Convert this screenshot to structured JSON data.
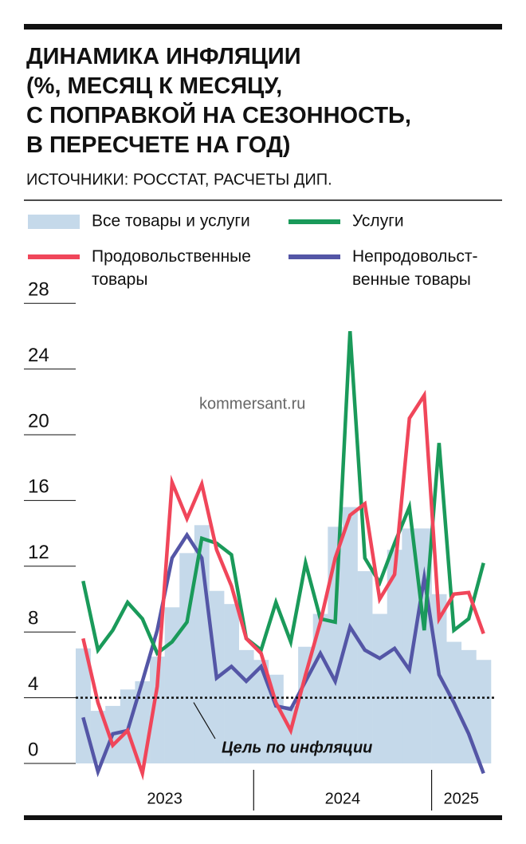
{
  "chart_data": {
    "type": "combo",
    "title": "ДИНАМИКА ИНФЛЯЦИИ\n(%, МЕСЯЦ К МЕСЯЦУ,\nС ПОПРАВКОЙ НА СЕЗОННОСТЬ,\nВ ПЕРЕСЧЕТЕ НА ГОД)",
    "subtitle": "ИСТОЧНИКИ: РОССТАТ, РАСЧЕТЫ ДИП.",
    "watermark": "kommersant.ru",
    "categories": [
      null,
      null,
      null,
      null,
      null,
      null,
      null,
      null,
      null,
      null,
      null,
      null,
      null,
      null,
      null,
      null,
      null,
      null,
      null,
      null,
      null,
      null,
      null,
      null,
      null,
      null,
      null,
      null
    ],
    "year_labels": [
      "2023",
      "2024",
      "2025"
    ],
    "series": [
      {
        "name": "Все товары и услуги",
        "type": "bar",
        "color": "#c5d9ea",
        "values": [
          7.0,
          3.2,
          3.5,
          4.5,
          5.0,
          6.5,
          9.5,
          12.8,
          14.5,
          10.5,
          9.7,
          6.9,
          6.3,
          5.4,
          3.5,
          7.1,
          9.1,
          14.4,
          15.6,
          11.7,
          9.1,
          13.0,
          14.3,
          14.3,
          10.3,
          7.4,
          6.9,
          6.3
        ]
      },
      {
        "name": "Услуги",
        "type": "line",
        "color": "#1a9a5a",
        "values": [
          11.1,
          6.9,
          8.1,
          9.8,
          8.8,
          6.7,
          7.4,
          8.6,
          13.7,
          13.4,
          12.7,
          7.6,
          6.9,
          9.8,
          7.4,
          12.2,
          8.8,
          8.6,
          26.3,
          12.5,
          11.0,
          13.4,
          15.6,
          8.1,
          19.5,
          8.1,
          8.8,
          12.2
        ]
      },
      {
        "name": "Продовольственные\nтовары",
        "type": "line",
        "color": "#f0465a",
        "values": [
          7.6,
          3.7,
          1.1,
          2.0,
          -0.6,
          4.7,
          17.1,
          14.9,
          17.0,
          13.0,
          10.8,
          7.6,
          6.7,
          3.7,
          2.0,
          5.4,
          8.6,
          12.5,
          15.1,
          15.8,
          10.0,
          11.5,
          21.0,
          22.4,
          8.8,
          10.3,
          10.4,
          7.9
        ]
      },
      {
        "name": "Непродовольст-\nвенные товары",
        "type": "line",
        "color": "#5456a6",
        "values": [
          2.8,
          -0.5,
          1.8,
          2.0,
          5.0,
          8.1,
          12.5,
          13.9,
          12.5,
          5.2,
          5.9,
          5.0,
          5.9,
          3.5,
          3.3,
          5.0,
          6.7,
          5.0,
          8.3,
          6.9,
          6.4,
          7.0,
          5.7,
          11.3,
          5.4,
          3.7,
          1.8,
          -0.6
        ]
      }
    ],
    "target": {
      "value": 4,
      "label": "Цель по инфляции"
    },
    "ylim": [
      -1,
      29
    ],
    "yticks": [
      0,
      4,
      8,
      12,
      16,
      20,
      24,
      28
    ]
  }
}
